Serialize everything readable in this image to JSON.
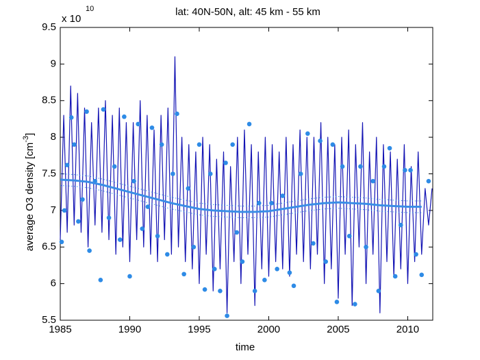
{
  "chart_data": {
    "type": "line",
    "title": "lat: 40N-50N, alt: 45 km - 55 km",
    "xlabel": "time",
    "ylabel": "average O3 density [cm",
    "ylabel_sup": "-3",
    "ylabel_end": "]",
    "y_multiplier": "x 10",
    "y_multiplier_exp": "10",
    "xlim": [
      1985,
      2011.8
    ],
    "ylim": [
      5.5,
      9.5
    ],
    "xticks": [
      1985,
      1990,
      1995,
      2000,
      2005,
      2010
    ],
    "yticks": [
      5.5,
      6,
      6.5,
      7,
      7.5,
      8,
      8.5,
      9,
      9.5
    ],
    "grid": false,
    "series": [
      {
        "kind": "line",
        "color": "#1414b4",
        "width": 1.2,
        "x": [
          1985,
          1985.25,
          1985.5,
          1985.75,
          1986,
          1986.25,
          1986.5,
          1986.75,
          1987,
          1987.25,
          1987.5,
          1987.75,
          1988,
          1988.25,
          1988.5,
          1988.75,
          1989,
          1989.25,
          1989.5,
          1989.75,
          1990,
          1990.25,
          1990.5,
          1990.75,
          1991,
          1991.25,
          1991.5,
          1991.75,
          1992,
          1992.25,
          1992.5,
          1992.75,
          1993,
          1993.25,
          1993.5,
          1993.75,
          1994,
          1994.25,
          1994.5,
          1994.75,
          1995,
          1995.25,
          1995.5,
          1995.75,
          1996,
          1996.25,
          1996.5,
          1996.75,
          1997,
          1997.25,
          1997.5,
          1997.75,
          1998,
          1998.25,
          1998.5,
          1998.75,
          1999,
          1999.25,
          1999.5,
          1999.75,
          2000,
          2000.25,
          2000.5,
          2000.75,
          2001,
          2001.25,
          2001.5,
          2001.75,
          2002,
          2002.25,
          2002.5,
          2002.75,
          2003,
          2003.25,
          2003.5,
          2003.75,
          2004,
          2004.25,
          2004.5,
          2004.75,
          2005,
          2005.25,
          2005.5,
          2005.75,
          2006,
          2006.25,
          2006.5,
          2006.75,
          2007,
          2007.25,
          2007.5,
          2007.75,
          2008,
          2008.25,
          2008.5,
          2008.75,
          2009,
          2009.25,
          2009.5,
          2009.75,
          2010,
          2010.25,
          2010.5,
          2010.75,
          2011,
          2011.25,
          2011.5,
          2011.75
        ],
        "values": [
          6.6,
          8.3,
          6.7,
          8.7,
          6.8,
          8.6,
          6.7,
          8.4,
          6.5,
          8.2,
          6.8,
          8.4,
          6.7,
          8.5,
          6.6,
          8.3,
          6.4,
          8.4,
          6.5,
          8.2,
          6.3,
          8.2,
          6.6,
          8.5,
          6.5,
          8.3,
          6.4,
          8.1,
          6.3,
          8.3,
          6.6,
          8.4,
          6.4,
          9.1,
          6.5,
          8.0,
          6.3,
          7.9,
          6.2,
          7.8,
          6.0,
          8.0,
          6.4,
          7.9,
          5.9,
          7.7,
          6.2,
          7.8,
          5.6,
          7.6,
          6.3,
          8.0,
          6.0,
          8.1,
          6.4,
          7.9,
          5.7,
          7.8,
          6.2,
          8.0,
          6.1,
          7.9,
          6.3,
          7.8,
          6.2,
          8.0,
          6.1,
          7.9,
          6.4,
          8.1,
          6.3,
          8.0,
          6.2,
          8.0,
          6.4,
          8.2,
          6.0,
          8.0,
          6.2,
          7.9,
          5.8,
          8.0,
          6.4,
          8.1,
          5.7,
          7.9,
          6.5,
          8.2,
          6.0,
          7.8,
          6.4,
          8.0,
          5.6,
          7.9,
          6.3,
          7.8,
          6.1,
          7.7,
          6.2,
          7.9,
          6.0,
          7.6,
          6.3,
          7.8,
          6.4,
          7.3,
          6.8,
          7.3
        ]
      },
      {
        "kind": "scatter",
        "color": "#2e8be6",
        "x": [
          1985.1,
          1985.3,
          1985.5,
          1985.8,
          1986,
          1986.3,
          1986.6,
          1986.9,
          1987.1,
          1987.5,
          1987.9,
          1988.1,
          1988.5,
          1988.9,
          1989.3,
          1989.6,
          1990,
          1990.3,
          1990.6,
          1990.9,
          1991.3,
          1991.6,
          1992,
          1992.3,
          1992.7,
          1993.1,
          1993.4,
          1993.9,
          1994.2,
          1994.6,
          1995,
          1995.4,
          1995.8,
          1996.1,
          1996.5,
          1996.9,
          1997,
          1997.4,
          1997.7,
          1998.1,
          1998.6,
          1999,
          1999.3,
          1999.7,
          2000.2,
          2000.6,
          2001,
          2001.5,
          2001.8,
          2002.3,
          2002.8,
          2003.2,
          2003.7,
          2004.1,
          2004.6,
          2004.9,
          2005.3,
          2005.8,
          2006.2,
          2006.6,
          2007,
          2007.5,
          2007.9,
          2008.3,
          2008.7,
          2009.1,
          2009.5,
          2009.8,
          2010.2,
          2010.6,
          2011,
          2011.5
        ],
        "values": [
          6.57,
          7.0,
          7.62,
          8.27,
          7.9,
          6.85,
          7.15,
          8.35,
          6.45,
          7.4,
          6.05,
          8.38,
          6.9,
          7.6,
          6.6,
          8.28,
          6.1,
          7.4,
          8.18,
          6.75,
          7.05,
          8.13,
          6.65,
          7.9,
          6.4,
          7.5,
          8.32,
          6.13,
          7.3,
          6.5,
          7.9,
          5.92,
          7.5,
          6.2,
          5.9,
          7.65,
          5.56,
          7.9,
          6.7,
          6.3,
          8.18,
          5.9,
          7.1,
          6.05,
          7.1,
          6.2,
          7.2,
          6.15,
          5.97,
          7.5,
          8.05,
          6.55,
          7.95,
          6.3,
          7.9,
          5.75,
          7.6,
          6.65,
          5.72,
          7.6,
          6.5,
          7.4,
          5.9,
          7.6,
          7.85,
          6.1,
          6.8,
          7.55,
          7.55,
          6.4,
          6.12,
          7.4
        ]
      },
      {
        "kind": "line",
        "color": "#3a8ee6",
        "width": 3,
        "x": [
          1985,
          1986,
          1987,
          1988,
          1989,
          1990,
          1991,
          1992,
          1993,
          1994,
          1995,
          1996,
          1997,
          1998,
          1999,
          2000,
          2001,
          2002,
          2003,
          2004,
          2005,
          2006,
          2007,
          2008,
          2009,
          2010,
          2011
        ],
        "values": [
          7.42,
          7.41,
          7.39,
          7.35,
          7.3,
          7.25,
          7.2,
          7.15,
          7.1,
          7.06,
          7.02,
          7.0,
          6.99,
          6.98,
          6.98,
          6.99,
          7.02,
          7.05,
          7.08,
          7.1,
          7.11,
          7.1,
          7.09,
          7.07,
          7.06,
          7.05,
          7.05
        ]
      },
      {
        "kind": "dotted",
        "color": "#3a8ee6",
        "width": 1,
        "x": [
          1985,
          1986,
          1987,
          1988,
          1989,
          1990,
          1991,
          1992,
          1993,
          1994,
          1995,
          1996,
          1997,
          1998,
          1999,
          2000,
          2001,
          2002,
          2003,
          2004,
          2005,
          2006,
          2007,
          2008,
          2009,
          2010,
          2011
        ],
        "values": [
          7.5,
          7.49,
          7.47,
          7.43,
          7.38,
          7.33,
          7.28,
          7.23,
          7.18,
          7.14,
          7.1,
          7.08,
          7.07,
          7.06,
          7.06,
          7.07,
          7.1,
          7.13,
          7.16,
          7.18,
          7.19,
          7.18,
          7.17,
          7.15,
          7.14,
          7.13,
          7.13
        ]
      },
      {
        "kind": "dotted",
        "color": "#3a8ee6",
        "width": 1,
        "x": [
          1985,
          1986,
          1987,
          1988,
          1989,
          1990,
          1991,
          1992,
          1993,
          1994,
          1995,
          1996,
          1997,
          1998,
          1999,
          2000,
          2001,
          2002,
          2003,
          2004,
          2005,
          2006,
          2007,
          2008,
          2009,
          2010,
          2011
        ],
        "values": [
          7.34,
          7.33,
          7.31,
          7.27,
          7.22,
          7.17,
          7.12,
          7.07,
          7.02,
          6.98,
          6.94,
          6.92,
          6.91,
          6.9,
          6.9,
          6.91,
          6.94,
          6.97,
          7.0,
          7.02,
          7.03,
          7.02,
          7.01,
          6.99,
          6.98,
          6.97,
          6.97
        ]
      }
    ]
  }
}
